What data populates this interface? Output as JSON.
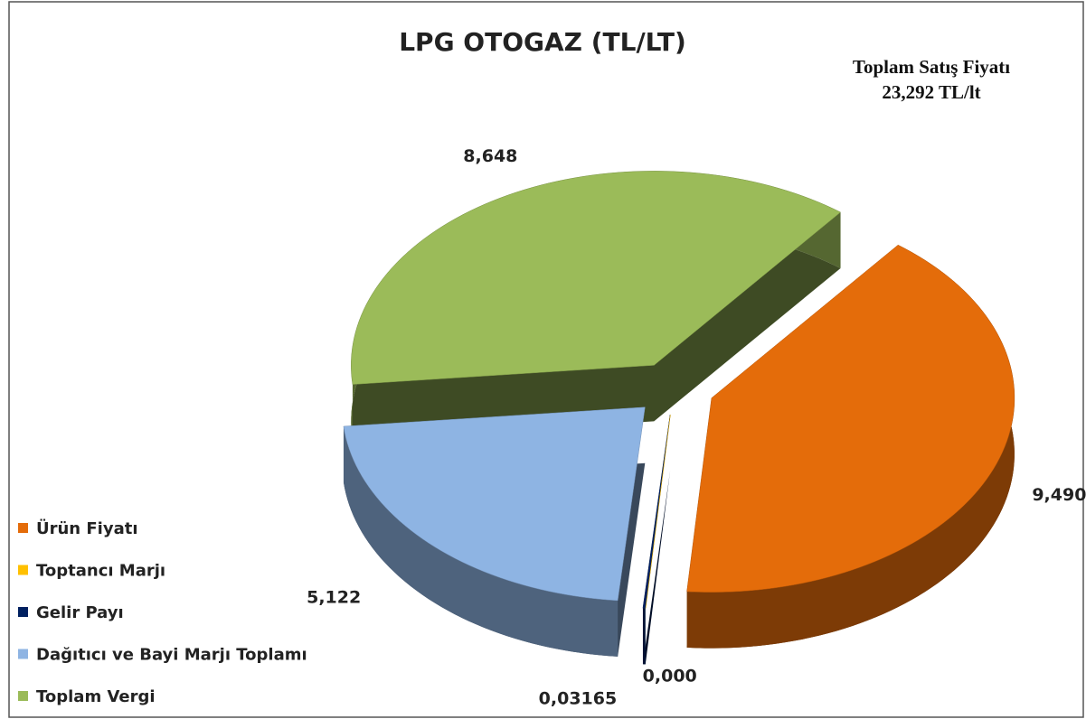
{
  "chart_data": {
    "type": "pie3d",
    "title": "LPG OTOGAZ (TL/LT)",
    "annotation": [
      "Toplam Satış Fiyatı",
      "23,292 TL/lt"
    ],
    "categories": [
      "Ürün Fiyatı",
      "Toptancı Marjı",
      "Gelir Payı",
      "Dağıtıcı ve Bayi Marjı Toplamı",
      "Toplam Vergi"
    ],
    "values": [
      9.49,
      0,
      0.03165,
      5.122,
      8.648
    ],
    "value_labels": [
      "9,490",
      "0,000",
      "0,03165",
      "5,122",
      "8,648"
    ],
    "colors": [
      "#e46c0a",
      "#ffc000",
      "#002060",
      "#8eb4e3",
      "#9bbb59"
    ],
    "legend": "left"
  }
}
